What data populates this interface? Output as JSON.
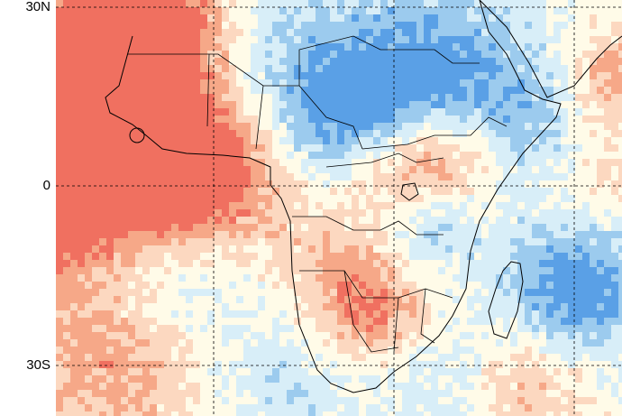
{
  "map": {
    "latitude_labels": [
      "30N",
      "0",
      "30S"
    ],
    "palette": {
      "strong_positive": "#f07060",
      "positive": "#f6a888",
      "weak_positive": "#fcd8c0",
      "neutral": "#fffbe8",
      "weak_negative": "#d8eef8",
      "negative": "#9ccbee",
      "strong_negative": "#5aa0e6",
      "land_outline": "#000000",
      "grid_line": "#000000"
    }
  }
}
